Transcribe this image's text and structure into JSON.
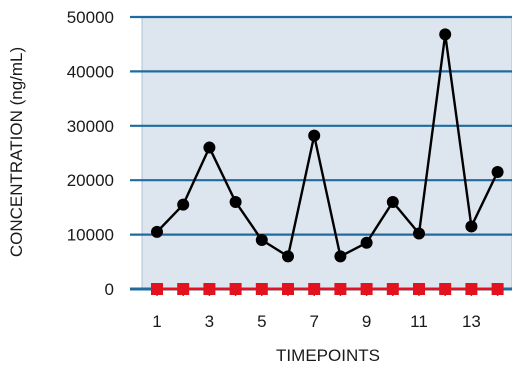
{
  "chart_data": {
    "type": "line",
    "title": "",
    "xlabel": "TIMEPOINTS",
    "ylabel": "CONCENTRATION (ng/mL)",
    "x": [
      1,
      2,
      3,
      4,
      5,
      6,
      7,
      8,
      9,
      10,
      11,
      12,
      13,
      14
    ],
    "x_tick_labels": [
      "1",
      "3",
      "5",
      "7",
      "9",
      "11",
      "13"
    ],
    "x_tick_values": [
      1,
      3,
      5,
      7,
      9,
      11,
      13
    ],
    "xlim": [
      0.5,
      14.5
    ],
    "ylim": [
      0,
      50000
    ],
    "y_ticks": [
      0,
      10000,
      20000,
      30000,
      40000,
      50000
    ],
    "y_tick_labels": [
      "0",
      "10000",
      "20000",
      "30000",
      "40000",
      "50000"
    ],
    "grid": "horizontal",
    "legend": "none",
    "colors": {
      "plot_background": "#dde6ef",
      "gridline": "#1f6ba0",
      "axis": "#1f6ba0",
      "series_line": "#000000",
      "baseline_marker": "#e3121f"
    },
    "series": [
      {
        "marker": "circle",
        "color": "#000000",
        "values": [
          10500,
          15500,
          26000,
          16000,
          9000,
          6000,
          28200,
          6000,
          8500,
          16000,
          10200,
          46800,
          11500,
          21500
        ]
      },
      {
        "marker": "square",
        "color": "#e3121f",
        "values": [
          0,
          0,
          0,
          0,
          0,
          0,
          0,
          0,
          0,
          0,
          0,
          0,
          0,
          0
        ]
      }
    ]
  }
}
